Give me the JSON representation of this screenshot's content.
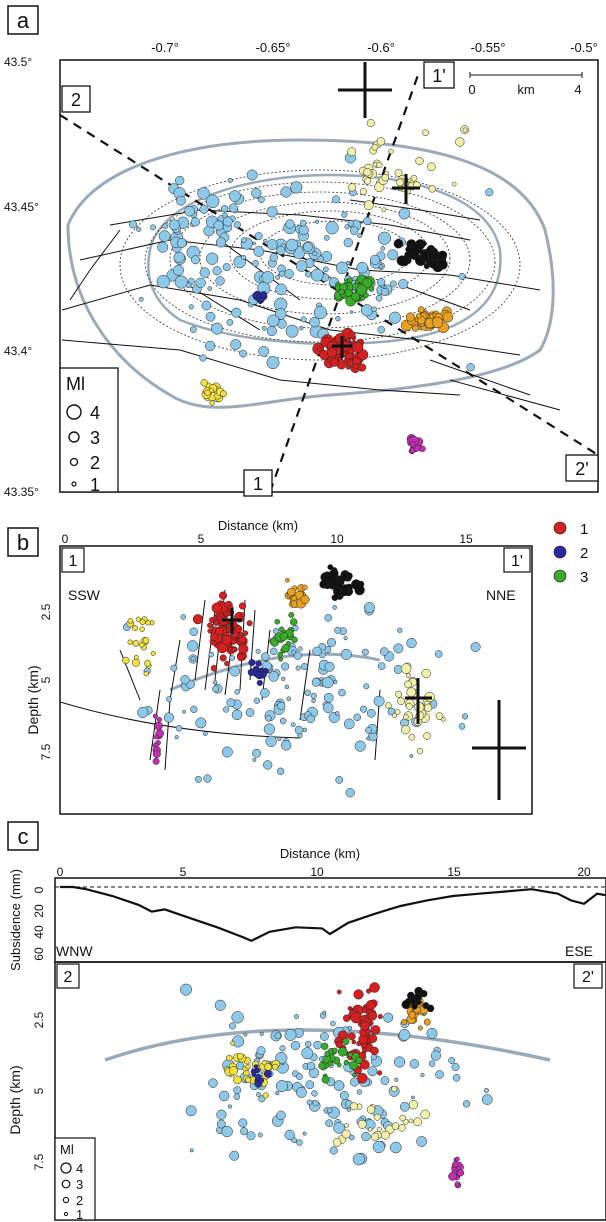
{
  "panel_a": {
    "letter": "a",
    "top_ticks": [
      "-0.7°",
      "-0.65°",
      "-0.6°",
      "-0.55°",
      "-0.5°"
    ],
    "left_ticks": [
      "43.5°",
      "43.45°",
      "43.4°",
      "43.35°"
    ],
    "section_labels": [
      "2",
      "1'",
      "1",
      "2'"
    ],
    "scale_zero": "0",
    "scale_unit": "km",
    "scale_end": "4",
    "ml_title": "Ml",
    "ml_labels": [
      "4",
      "3",
      "2",
      "1"
    ]
  },
  "panel_b": {
    "letter": "b",
    "x_title": "Distance (km)",
    "x_ticks": [
      "0",
      "5",
      "10",
      "15"
    ],
    "y_title": "Depth (km)",
    "y_ticks": [
      "2.5",
      "5",
      "7.5"
    ],
    "corner_left": "1",
    "corner_right": "1'",
    "dir_left": "SSW",
    "dir_right": "NNE",
    "legend": [
      {
        "label": "1",
        "color": "#d42020"
      },
      {
        "label": "2",
        "color": "#2a2aa0"
      },
      {
        "label": "3",
        "color": "#3aaa2a"
      }
    ]
  },
  "panel_c": {
    "letter": "c",
    "x_title": "Distance (km)",
    "x_ticks": [
      "0",
      "5",
      "10",
      "15",
      "20"
    ],
    "sub_title": "Subsidence (mm)",
    "sub_ticks": [
      "0",
      "20",
      "40",
      "60"
    ],
    "dir_left": "WNW",
    "dir_right": "ESE",
    "corner_left": "2",
    "corner_right": "2'",
    "y_title": "Depth (km)",
    "y_ticks": [
      "2.5",
      "5",
      "7.5"
    ],
    "ml_title": "Ml",
    "ml_labels": [
      "4",
      "3",
      "2",
      "1"
    ],
    "subsidence_profile": {
      "distance_km": [
        0,
        0.5,
        1,
        2,
        3,
        3.5,
        4,
        5,
        6,
        7,
        7.3,
        8,
        9,
        10,
        10.3,
        11,
        12,
        13,
        14,
        15,
        16,
        17,
        18,
        19,
        19.5,
        20,
        20.5,
        21
      ],
      "subsidence_mm": [
        0,
        0,
        2,
        8,
        16,
        22,
        20,
        28,
        36,
        45,
        48,
        40,
        36,
        37,
        42,
        32,
        24,
        17,
        12,
        8,
        6,
        4,
        2,
        6,
        12,
        15,
        6,
        8
      ]
    }
  },
  "colors": {
    "background_events": "#8ec8e8",
    "cluster_red": "#d42020",
    "cluster_blue": "#2a2aa0",
    "cluster_green": "#3aaa2a",
    "cluster_black": "#111111",
    "cluster_orange": "#e8a020",
    "cluster_yellow": "#f0e040",
    "cluster_magenta": "#c030b0",
    "cluster_paleyellow": "#f0f0a8",
    "contour_grey": "#9aaab8"
  }
}
